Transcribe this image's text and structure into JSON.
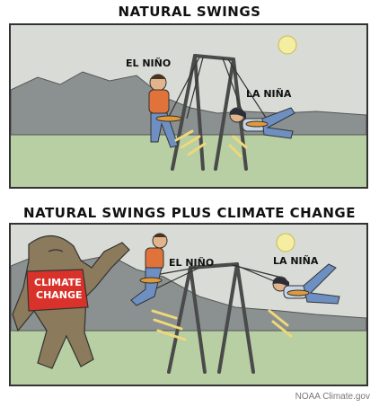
{
  "titles": {
    "top": "NATURAL SWINGS",
    "bottom": "NATURAL SWINGS PLUS CLIMATE CHANGE"
  },
  "labels": {
    "el_nino": "EL NIÑO",
    "la_nina": "LA NIÑA",
    "climate_change_line1": "CLIMATE",
    "climate_change_line2": "CHANGE"
  },
  "credit": "NOAA Climate.gov",
  "colors": {
    "sky": "#d9dcd6",
    "mountains": "#8a9190",
    "grass": "#b7cfa3",
    "sun": "#f4eea2",
    "swing_frame": "#4a4a4a",
    "shirt_orange": "#e0733a",
    "jeans_blue": "#6e8fc2",
    "monster_skin": "#8b7a5c",
    "monster_shirt": "#d9322b",
    "motion_lines": "#f0d87a"
  }
}
